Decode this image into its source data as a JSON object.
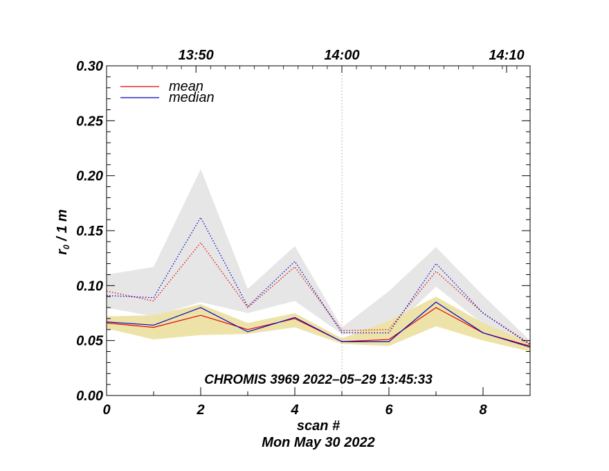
{
  "chart_data": {
    "type": "line",
    "x": [
      0,
      1,
      2,
      3,
      4,
      5,
      6,
      7,
      8,
      9
    ],
    "xlim": [
      0,
      9
    ],
    "ylim": [
      0,
      0.3
    ],
    "x_ticks": [
      "0",
      "2",
      "4",
      "6",
      "8"
    ],
    "y_ticks": [
      "0.00",
      "0.05",
      "0.10",
      "0.15",
      "0.20",
      "0.25",
      "0.30"
    ],
    "xlabel": "scan #",
    "ylabel_main": "r",
    "ylabel_sub": "0",
    "ylabel_rest": " / 1 m",
    "date_label": "Mon May 30 2022",
    "annotation": "CHROMIS 3969 2022–05–29 13:45:33",
    "top_axis": {
      "labels": [
        {
          "text": "13:50",
          "x": 1.9
        },
        {
          "text": "14:00",
          "x": 5.0
        },
        {
          "text": "14:10",
          "x": 8.5
        }
      ]
    },
    "vertical_marker": {
      "x": 5
    },
    "series": [
      {
        "name": "mean",
        "style": "solid",
        "color": "#e00000",
        "values": [
          0.066,
          0.062,
          0.073,
          0.06,
          0.07,
          0.049,
          0.051,
          0.08,
          0.057,
          0.045
        ]
      },
      {
        "name": "median",
        "style": "solid",
        "color": "#0000c8",
        "values": [
          0.067,
          0.064,
          0.08,
          0.058,
          0.071,
          0.049,
          0.049,
          0.085,
          0.057,
          0.044
        ]
      },
      {
        "name": "mean (dotted)",
        "style": "dotted",
        "color": "#e00000",
        "values": [
          0.095,
          0.086,
          0.139,
          0.08,
          0.117,
          0.059,
          0.06,
          0.113,
          0.075,
          0.047
        ]
      },
      {
        "name": "median (dotted)",
        "style": "dotted",
        "color": "#0000c8",
        "values": [
          0.091,
          0.089,
          0.162,
          0.081,
          0.122,
          0.057,
          0.057,
          0.12,
          0.075,
          0.046
        ]
      }
    ],
    "bands": [
      {
        "name": "upper range",
        "color": "#e6e6e6",
        "upper": [
          0.11,
          0.117,
          0.206,
          0.097,
          0.136,
          0.062,
          0.095,
          0.135,
          0.091,
          0.05
        ],
        "lower": [
          0.08,
          0.072,
          0.085,
          0.075,
          0.086,
          0.056,
          0.058,
          0.099,
          0.065,
          0.043
        ]
      },
      {
        "name": "lower range",
        "color": "#ede3a8",
        "upper": [
          0.072,
          0.073,
          0.083,
          0.066,
          0.075,
          0.052,
          0.068,
          0.09,
          0.066,
          0.048
        ],
        "lower": [
          0.061,
          0.051,
          0.055,
          0.056,
          0.062,
          0.047,
          0.045,
          0.063,
          0.05,
          0.04
        ]
      }
    ],
    "legend": {
      "position": "top-left",
      "entries": [
        {
          "label": "mean",
          "color": "#e00000"
        },
        {
          "label": "median",
          "color": "#0000c8"
        }
      ]
    }
  }
}
